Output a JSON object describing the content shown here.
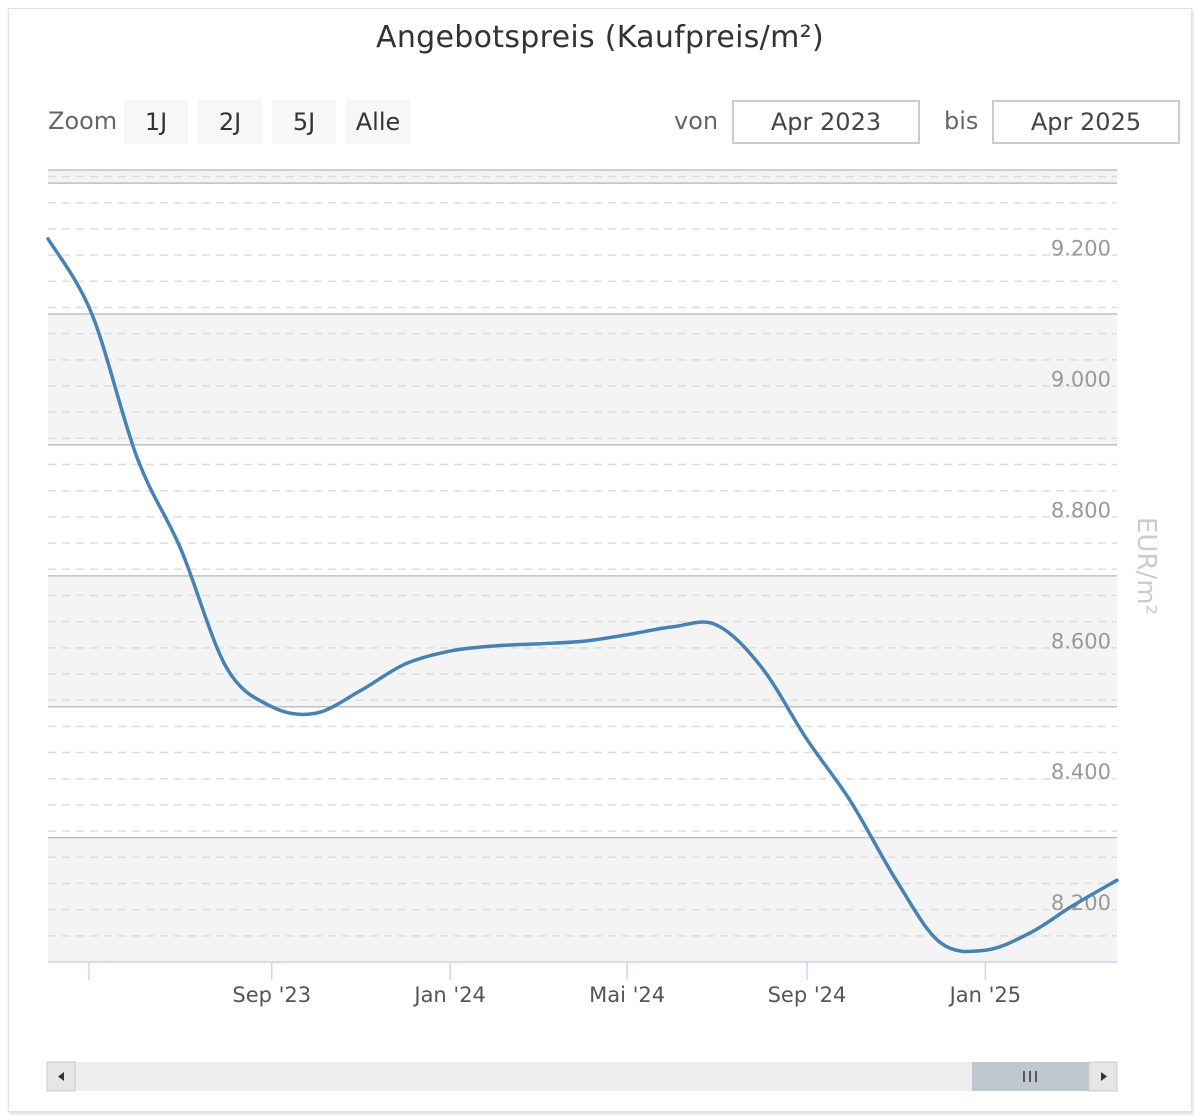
{
  "title": "Angebotspreis (Kaufpreis/m²)",
  "zoom": {
    "label": "Zoom",
    "buttons": [
      "1J",
      "2J",
      "5J",
      "Alle"
    ]
  },
  "range": {
    "from_label": "von",
    "from_value": "Apr 2023",
    "to_label": "bis",
    "to_value": "Apr 2025"
  },
  "colors": {
    "line": "#4682b4",
    "band": "#f4f4f4",
    "grid_major": "#c0c0c0",
    "grid_minor": "#dddddd",
    "navigator_handle": "#bfc7d0"
  },
  "scrollbar": {
    "left_arrow_icon": "arrow-left-icon",
    "right_arrow_icon": "arrow-right-icon",
    "grip_icon": "grip-icon"
  },
  "chart_data": {
    "type": "line",
    "title": "Angebotspreis (Kaufpreis/m²)",
    "ylabel": "EUR/m²",
    "ylim": [
      8110,
      9320
    ],
    "yticks": [
      8200,
      8400,
      8600,
      8800,
      9000,
      9200
    ],
    "ytick_labels": [
      "8.200",
      "8.400",
      "8.600",
      "8.800",
      "9.000",
      "9.200"
    ],
    "xlim": [
      "2023-04-01",
      "2025-04-01"
    ],
    "xticks": [
      "2023-09-01",
      "2024-01-01",
      "2024-05-01",
      "2024-09-01",
      "2025-01-01"
    ],
    "xtick_labels": [
      "Sep '23",
      "Jan '24",
      "Mai '24",
      "Sep '24",
      "Jan '25"
    ],
    "grid": true,
    "series": [
      {
        "values": [
          {
            "x": "2023-04-01",
            "y": 9215
          },
          {
            "x": "2023-05-01",
            "y": 9100
          },
          {
            "x": "2023-06-01",
            "y": 8880
          },
          {
            "x": "2023-07-01",
            "y": 8740
          },
          {
            "x": "2023-08-01",
            "y": 8560
          },
          {
            "x": "2023-09-01",
            "y": 8500
          },
          {
            "x": "2023-10-01",
            "y": 8490
          },
          {
            "x": "2023-11-01",
            "y": 8525
          },
          {
            "x": "2023-12-01",
            "y": 8565
          },
          {
            "x": "2024-01-01",
            "y": 8585
          },
          {
            "x": "2024-02-01",
            "y": 8593
          },
          {
            "x": "2024-03-01",
            "y": 8596
          },
          {
            "x": "2024-04-01",
            "y": 8600
          },
          {
            "x": "2024-05-01",
            "y": 8610
          },
          {
            "x": "2024-06-01",
            "y": 8622
          },
          {
            "x": "2024-07-01",
            "y": 8625
          },
          {
            "x": "2024-08-01",
            "y": 8560
          },
          {
            "x": "2024-09-01",
            "y": 8450
          },
          {
            "x": "2024-10-01",
            "y": 8355
          },
          {
            "x": "2024-11-01",
            "y": 8235
          },
          {
            "x": "2024-12-01",
            "y": 8140
          },
          {
            "x": "2025-01-01",
            "y": 8128
          },
          {
            "x": "2025-02-01",
            "y": 8155
          },
          {
            "x": "2025-03-01",
            "y": 8195
          },
          {
            "x": "2025-04-01",
            "y": 8235
          }
        ]
      }
    ]
  }
}
